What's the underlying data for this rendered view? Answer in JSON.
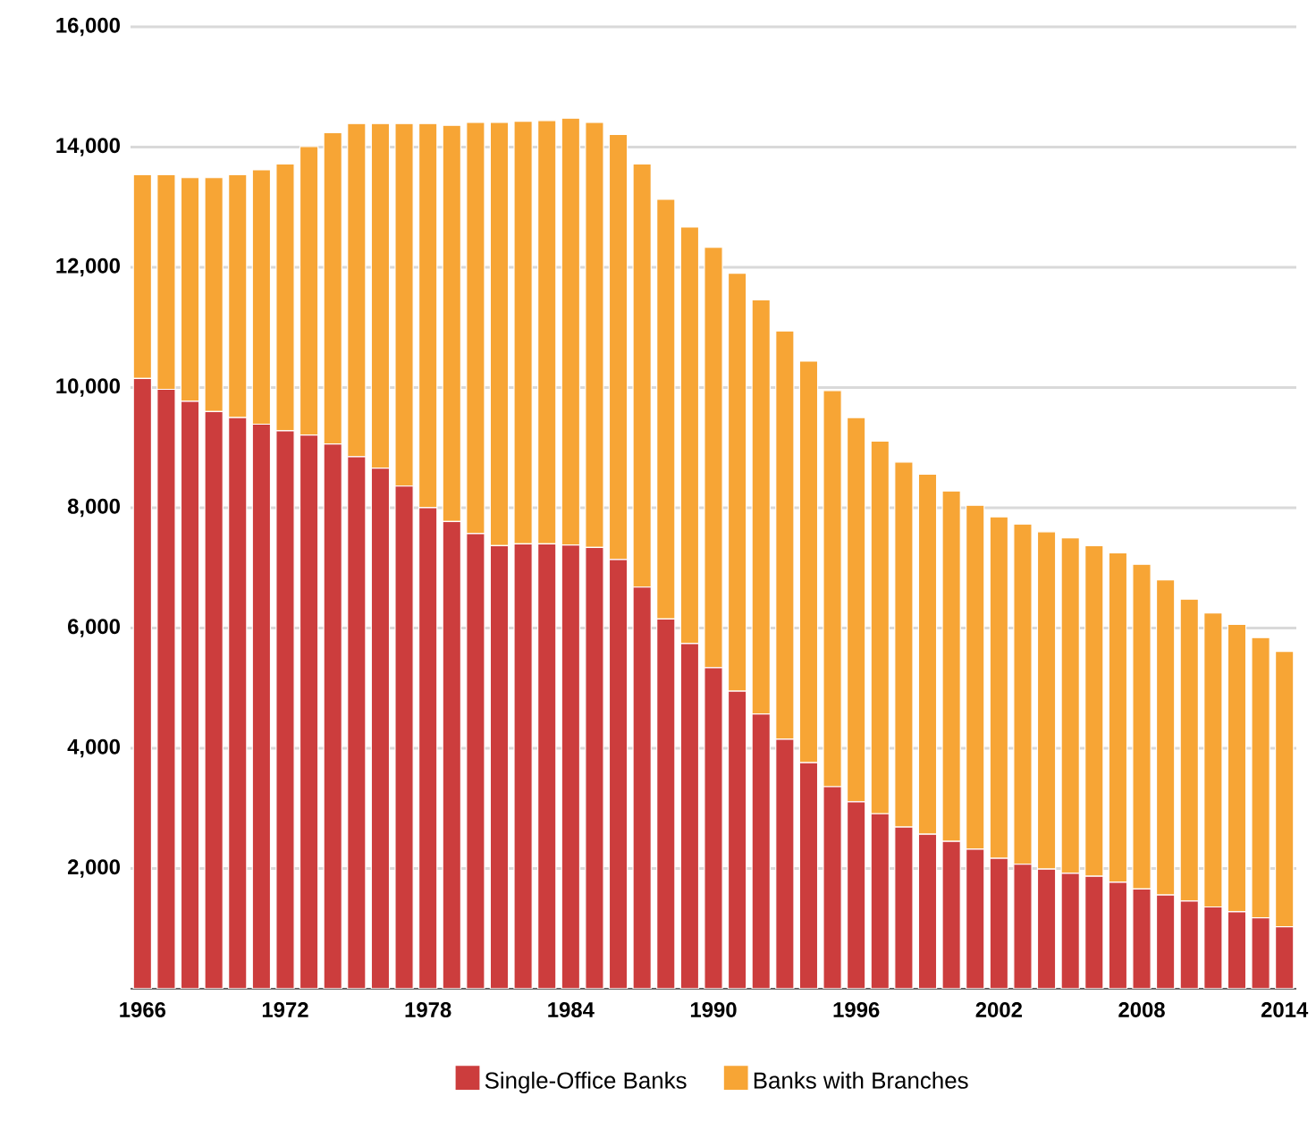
{
  "chart_data": {
    "type": "bar",
    "stacked": true,
    "categories": [
      "1966",
      null,
      null,
      null,
      null,
      null,
      "1972",
      null,
      null,
      null,
      null,
      null,
      "1978",
      null,
      null,
      null,
      null,
      null,
      "1984",
      null,
      null,
      null,
      null,
      null,
      "1990",
      null,
      null,
      null,
      null,
      null,
      "1996",
      null,
      null,
      null,
      null,
      null,
      "2002",
      null,
      null,
      null,
      null,
      null,
      "2008",
      null,
      null,
      null,
      null,
      null,
      "2014"
    ],
    "series": [
      {
        "name": "Single-Office Banks",
        "color": "#cc3d3d",
        "values": [
          10150,
          9970,
          9770,
          9600,
          9500,
          9390,
          9280,
          9210,
          9060,
          8850,
          8660,
          8360,
          8000,
          7770,
          7570,
          7370,
          7400,
          7400,
          7380,
          7340,
          7140,
          6680,
          6150,
          5740,
          5340,
          4950,
          4570,
          4150,
          3760,
          3360,
          3110,
          2910,
          2690,
          2570,
          2450,
          2320,
          2170,
          2070,
          1990,
          1920,
          1870,
          1770,
          1660,
          1560,
          1460,
          1360,
          1280,
          1180,
          1030
        ]
      },
      {
        "name": "Banks with Branches",
        "color": "#f7a535",
        "values": [
          3390,
          3570,
          3720,
          3890,
          4040,
          4230,
          4440,
          4800,
          5180,
          5540,
          5730,
          6030,
          6390,
          6590,
          6840,
          7040,
          7030,
          7040,
          7100,
          7070,
          7070,
          7040,
          6980,
          6930,
          6990,
          6950,
          6890,
          6790,
          6680,
          6590,
          6390,
          6200,
          6070,
          5990,
          5830,
          5720,
          5680,
          5660,
          5610,
          5580,
          5500,
          5480,
          5400,
          5240,
          5020,
          4890,
          4780,
          4660,
          4580
        ]
      }
    ],
    "ylim": [
      0,
      16000
    ],
    "yticks": [
      {
        "value": 2000,
        "label": "2,000"
      },
      {
        "value": 4000,
        "label": "4,000"
      },
      {
        "value": 6000,
        "label": "6,000"
      },
      {
        "value": 8000,
        "label": "8,000"
      },
      {
        "value": 10000,
        "label": "10,000"
      },
      {
        "value": 12000,
        "label": "12,000"
      },
      {
        "value": 14000,
        "label": "14,000"
      },
      {
        "value": 16000,
        "label": "16,000"
      }
    ],
    "grid": "y",
    "legend": "bottom"
  }
}
